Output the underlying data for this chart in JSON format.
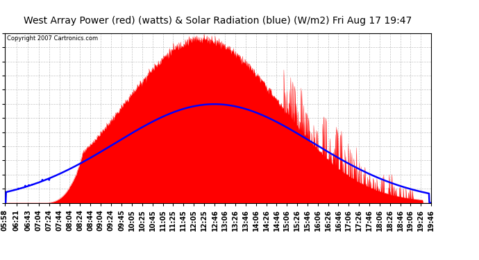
{
  "title": "West Array Power (red) (watts) & Solar Radiation (blue) (W/m2) Fri Aug 17 19:47",
  "copyright": "Copyright 2007 Cartronics.com",
  "y_ticks": [
    0.0,
    136.1,
    272.3,
    408.4,
    544.5,
    680.7,
    816.8,
    952.9,
    1089.0,
    1225.2,
    1361.3,
    1497.4,
    1633.6
  ],
  "ylim": [
    0.0,
    1633.6
  ],
  "x_labels": [
    "05:58",
    "06:21",
    "06:43",
    "07:04",
    "07:24",
    "07:44",
    "08:04",
    "08:24",
    "08:44",
    "09:04",
    "09:24",
    "09:45",
    "10:05",
    "10:25",
    "10:45",
    "11:05",
    "11:25",
    "11:45",
    "12:05",
    "12:25",
    "12:46",
    "13:06",
    "13:26",
    "13:46",
    "14:06",
    "14:26",
    "14:46",
    "15:06",
    "15:26",
    "15:46",
    "16:06",
    "16:26",
    "16:46",
    "17:06",
    "17:26",
    "17:46",
    "18:06",
    "18:26",
    "18:46",
    "19:06",
    "19:26",
    "19:46"
  ],
  "background_color": "#ffffff",
  "plot_bg_color": "#ffffff",
  "grid_color": "#aaaaaa",
  "red_color": "#ff0000",
  "blue_color": "#0000ff",
  "title_fontsize": 10,
  "tick_fontsize": 7,
  "copyright_fontsize": 6
}
